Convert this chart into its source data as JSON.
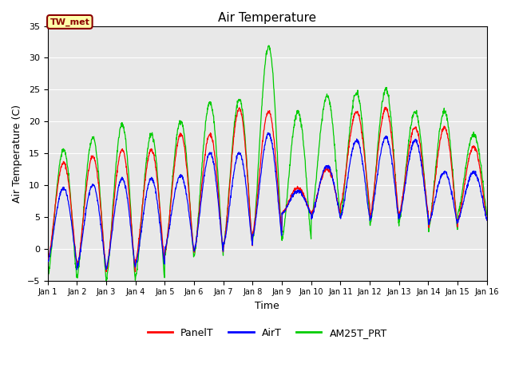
{
  "title": "Air Temperature",
  "xlabel": "Time",
  "ylabel": "Air Temperature (C)",
  "ylim": [
    -5,
    35
  ],
  "xlim": [
    0,
    15
  ],
  "station_label": "TW_met",
  "bg_color": "#e8e8e8",
  "legend_entries": [
    "PanelT",
    "AirT",
    "AM25T_PRT"
  ],
  "legend_colors": [
    "#ff0000",
    "#0000ff",
    "#00cc00"
  ],
  "xtick_labels": [
    "Jan 1",
    "Jan 2",
    "Jan 3",
    "Jan 4",
    "Jan 5",
    "Jan 6",
    "Jan 7",
    "Jan 8",
    "Jan 9",
    "Jan 10",
    "Jan 11",
    "Jan 12",
    "Jan 13",
    "Jan 14",
    "Jan 15",
    "Jan 16"
  ],
  "xtick_positions": [
    0,
    1,
    2,
    3,
    4,
    5,
    6,
    7,
    8,
    9,
    10,
    11,
    12,
    13,
    14,
    15
  ],
  "ytick_positions": [
    -5,
    0,
    5,
    10,
    15,
    20,
    25,
    30,
    35
  ],
  "figsize": [
    6.4,
    4.8
  ],
  "dpi": 100
}
